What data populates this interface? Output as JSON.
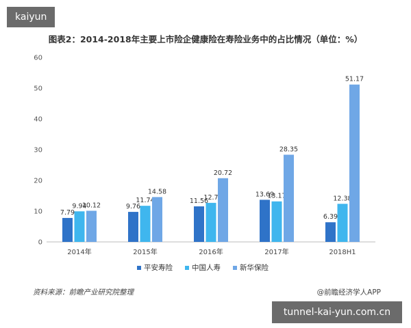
{
  "badges": {
    "top": "kaiyun",
    "bottom": "tunnel-kai-yun.com.cn"
  },
  "footer": {
    "source": "资料来源：前瞻产业研究院整理",
    "credit": "@前瞻经济学人APP"
  },
  "chart_data": {
    "type": "bar",
    "title": "图表2：2014-2018年主要上市险企健康险在寿险业务中的占比情况（单位：%）",
    "categories": [
      "2014年",
      "2015年",
      "2016年",
      "2017年",
      "2018H1"
    ],
    "series": [
      {
        "name": "平安寿险",
        "color": "#2f73c8",
        "values": [
          7.79,
          9.76,
          11.56,
          13.69,
          6.39
        ]
      },
      {
        "name": "中国人寿",
        "color": "#3fb6ee",
        "values": [
          9.94,
          11.74,
          12.7,
          13.17,
          12.38
        ]
      },
      {
        "name": "新华保险",
        "color": "#6fa7e6",
        "values": [
          10.12,
          14.58,
          20.72,
          28.35,
          51.17
        ]
      }
    ],
    "ylim": [
      0,
      60
    ],
    "yticks": [
      0,
      10,
      20,
      30,
      40,
      50,
      60
    ],
    "xlabel": "",
    "ylabel": "",
    "grid": false,
    "legend": "bottom-center"
  }
}
